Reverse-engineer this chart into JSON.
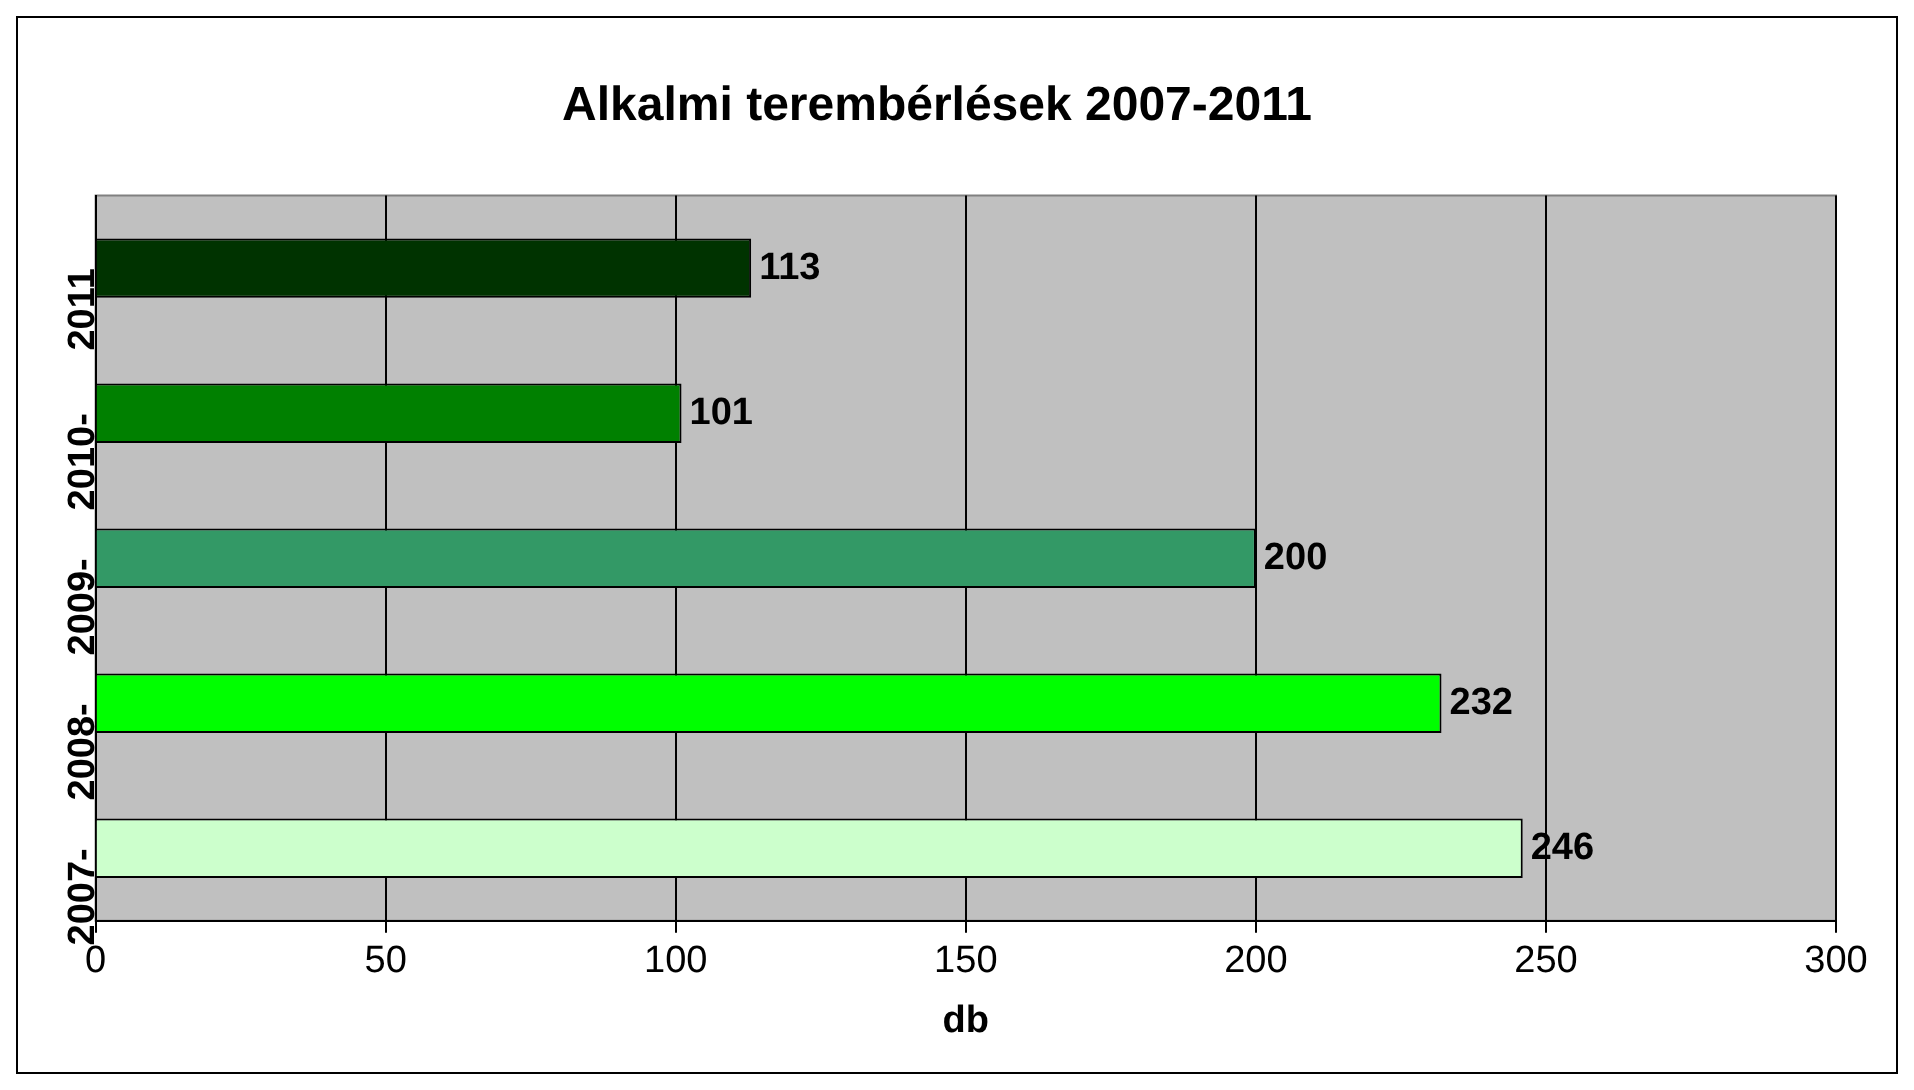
{
  "chart_data": {
    "type": "bar",
    "orientation": "horizontal",
    "title": "Alkalmi terembérlések 2007-2011",
    "xlabel": "db",
    "categories": [
      "2011",
      "2010-",
      "2009-",
      "2008-",
      "2007-"
    ],
    "values": [
      113,
      101,
      200,
      232,
      246
    ],
    "colors": [
      "#003300",
      "#008000",
      "#339966",
      "#00ff00",
      "#ccffcc"
    ],
    "xlim": [
      0,
      300
    ],
    "xticks": [
      0,
      50,
      100,
      150,
      200,
      250,
      300
    ],
    "grid": "x",
    "data_labels": true,
    "legend": false
  }
}
